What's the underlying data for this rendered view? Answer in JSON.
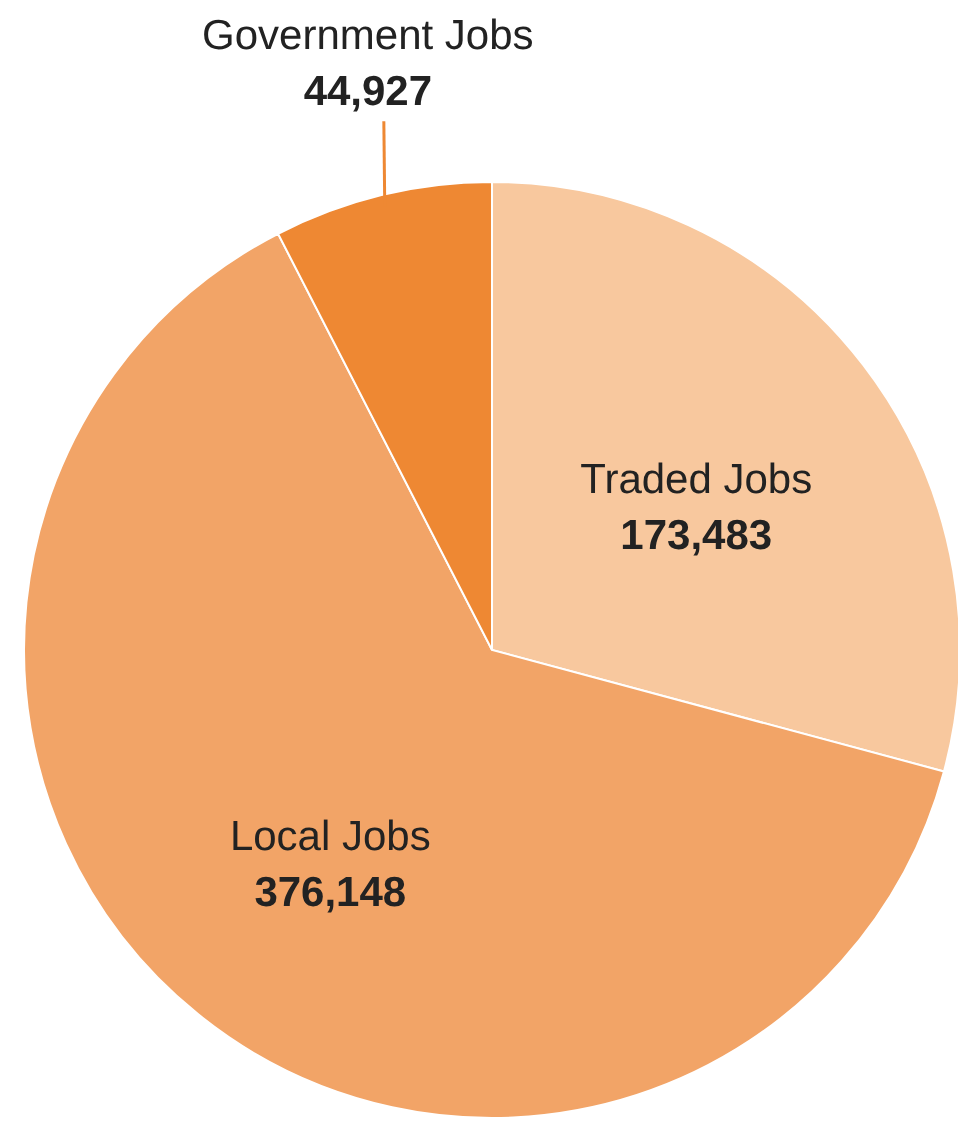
{
  "chart_data": {
    "type": "pie",
    "categories": [
      "Traded Jobs",
      "Local Jobs",
      "Government Jobs"
    ],
    "values": [
      173483,
      376148,
      44927
    ],
    "colors": [
      "#f8c89e",
      "#f2a467",
      "#ee8833"
    ],
    "value_labels": [
      "173,483",
      "376,148",
      "44,927"
    ]
  }
}
